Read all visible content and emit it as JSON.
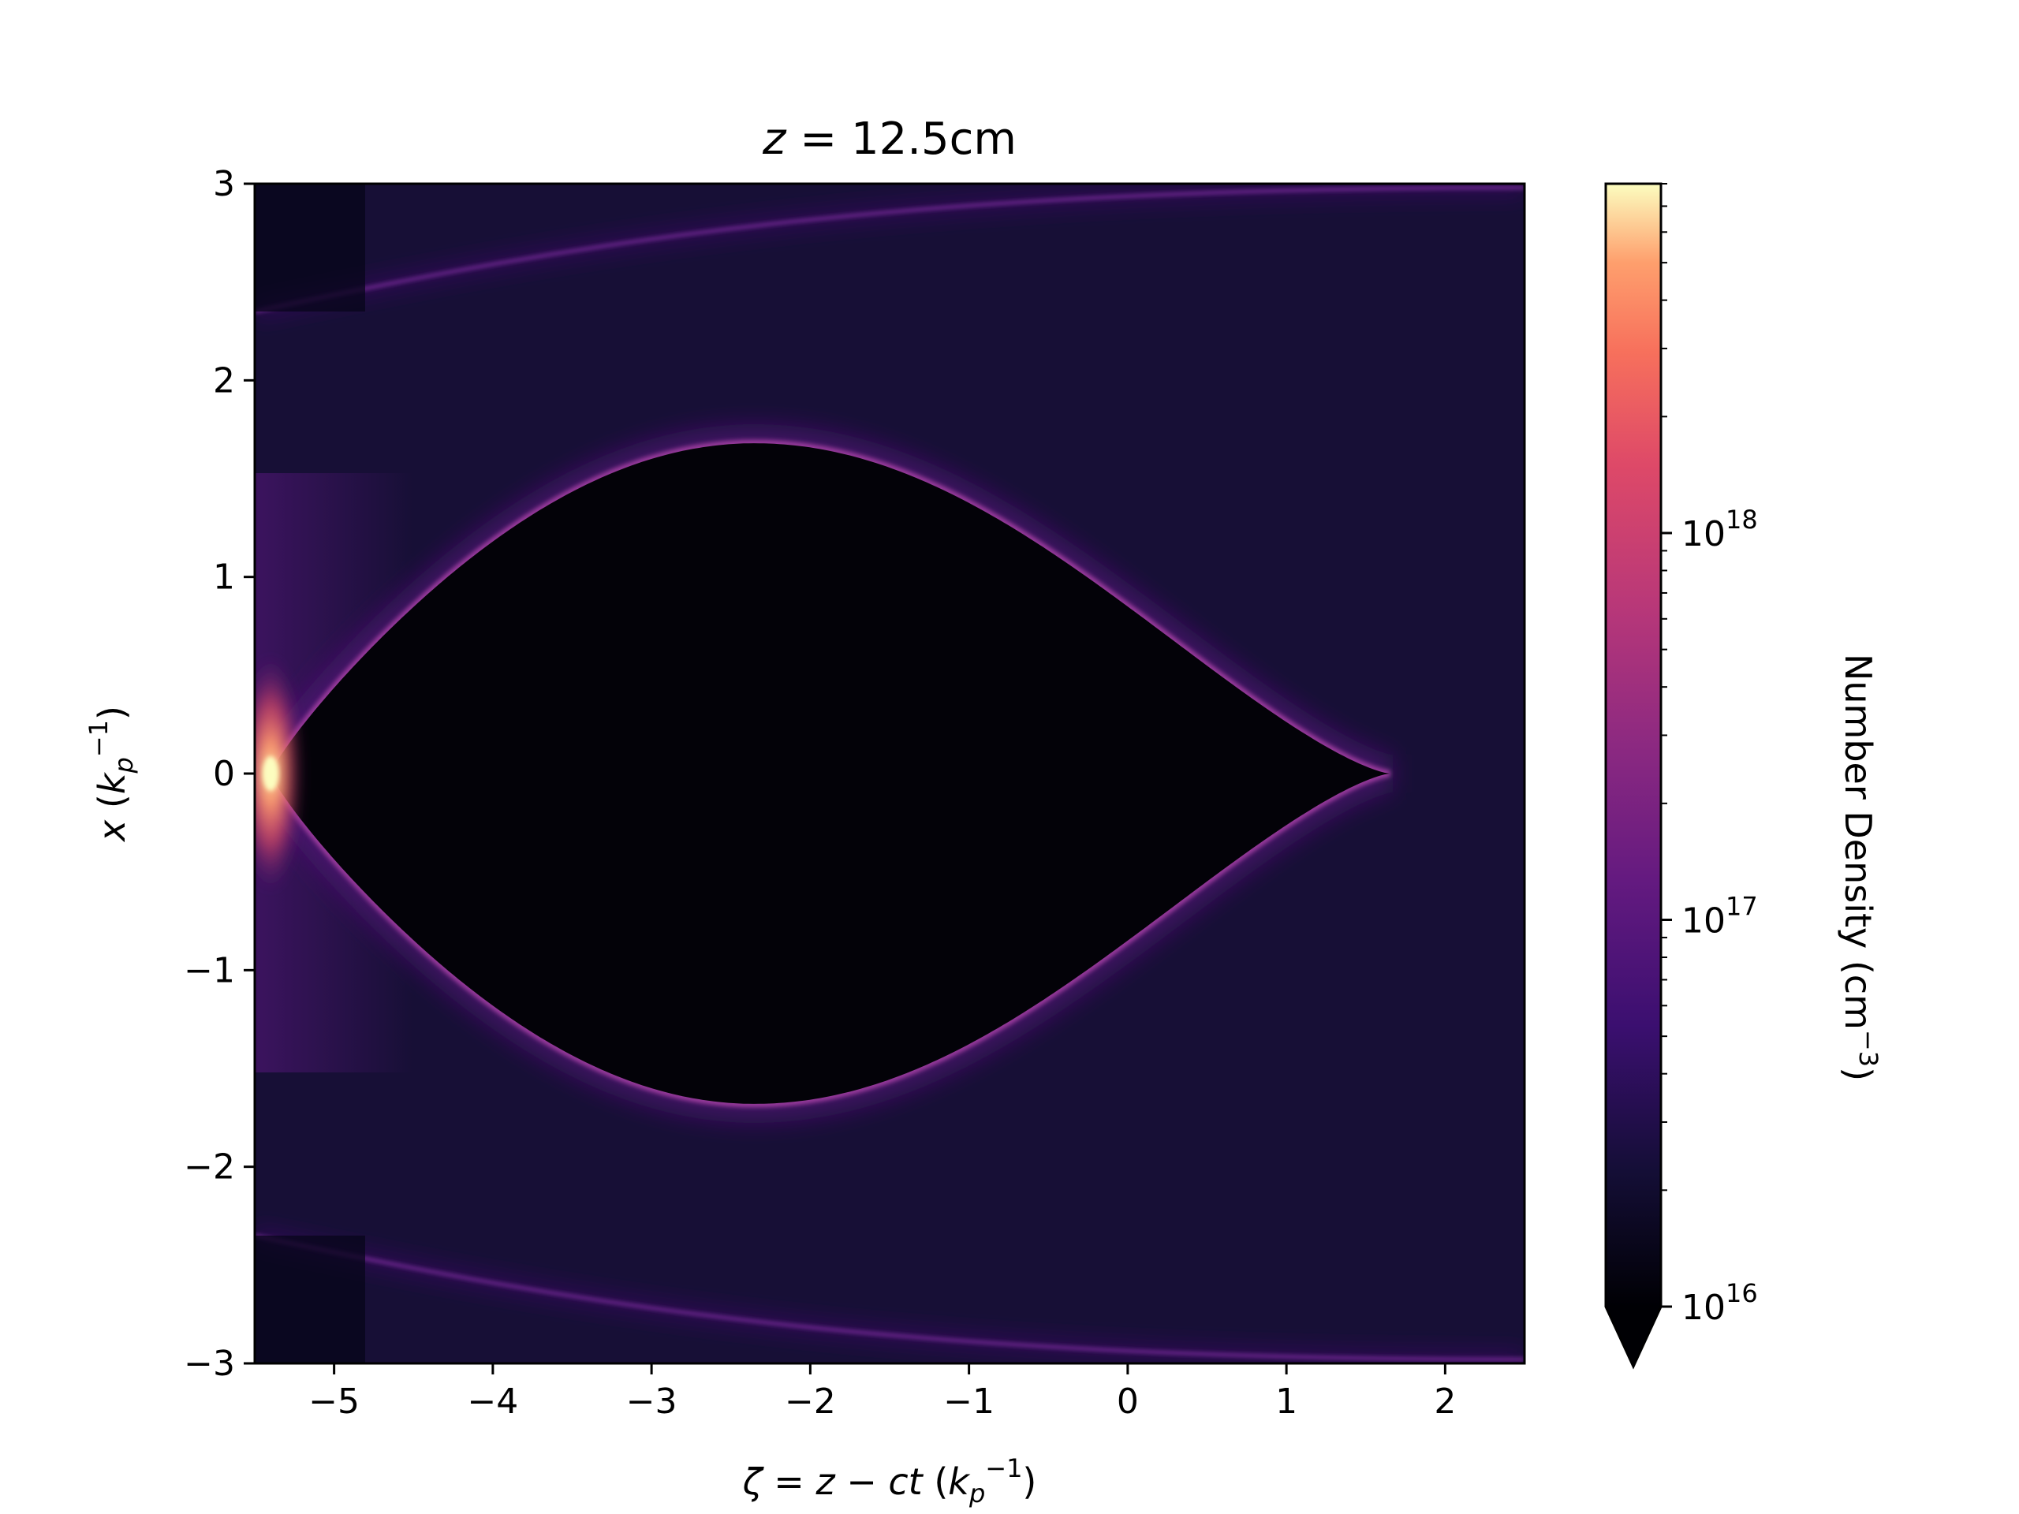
{
  "chart_data": {
    "type": "heatmap",
    "title": {
      "var": "z",
      "eq": " = ",
      "value": "12.5cm"
    },
    "xlabel": {
      "zeta": "ζ",
      "eq": " = ",
      "z": "z",
      "minus": " − ",
      "ct": "ct",
      "open": " (",
      "k": "k",
      "sub": "p",
      "sup": "−1",
      "close": ")"
    },
    "ylabel": {
      "x": "x",
      "open": " (",
      "k": "k",
      "sub": "p",
      "sup": "−1",
      "close": ")"
    },
    "xlim": [
      -5.5,
      2.5
    ],
    "ylim": [
      -3,
      3
    ],
    "xticks": [
      {
        "value": -5,
        "label": "−5"
      },
      {
        "value": -4,
        "label": "−4"
      },
      {
        "value": -3,
        "label": "−3"
      },
      {
        "value": -2,
        "label": "−2"
      },
      {
        "value": -1,
        "label": "−1"
      },
      {
        "value": 0,
        "label": "0"
      },
      {
        "value": 1,
        "label": "1"
      },
      {
        "value": 2,
        "label": "2"
      }
    ],
    "yticks": [
      {
        "value": -3,
        "label": "−3"
      },
      {
        "value": -2,
        "label": "−2"
      },
      {
        "value": -1,
        "label": "−1"
      },
      {
        "value": 0,
        "label": "0"
      },
      {
        "value": 1,
        "label": "1"
      },
      {
        "value": 2,
        "label": "2"
      },
      {
        "value": 3,
        "label": "3"
      }
    ],
    "colorbar": {
      "label": "Number Density (cm",
      "label_sup": "−3",
      "label_close": ")",
      "scale": "log",
      "range": [
        1e+16,
        8e+18
      ],
      "extend": "min",
      "colormap": "magma",
      "ticks": [
        {
          "value": 1e+16,
          "base": "10",
          "exp": "16"
        },
        {
          "value": 1e+17,
          "base": "10",
          "exp": "17"
        },
        {
          "value": 1e+18,
          "base": "10",
          "exp": "18"
        }
      ]
    },
    "features": {
      "cavity_front_zeta": -5.4,
      "cavity_back_zeta": 1.65,
      "cavity_max_radius": 1.68,
      "cavity_max_radius_zeta": -2.35,
      "cavity_density": 0,
      "background_density": 2e+16,
      "sheath_peak_density": 1e+17,
      "spike_zeta": -5.4,
      "spike_x": 0,
      "spike_density": 1e+18,
      "outer_filaments_x": [
        2.35,
        3.0
      ]
    }
  }
}
